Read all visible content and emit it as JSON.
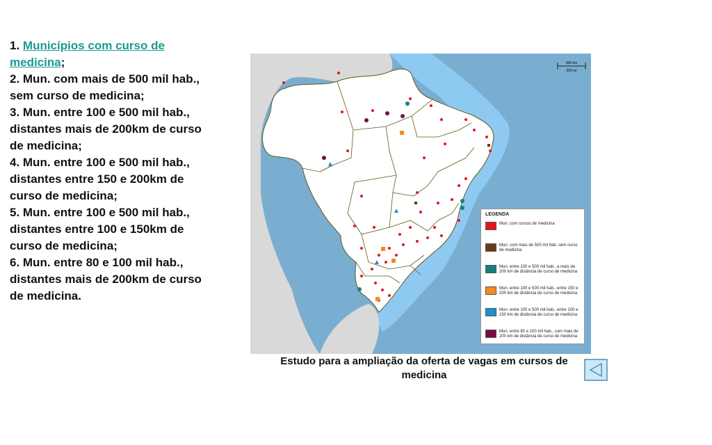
{
  "list": {
    "item1_prefix": "1. ",
    "item1_link": "Municípios com curso de medicina",
    "item1_suffix": ";",
    "item2": "2. Mun. com mais de 500 mil hab., sem curso de medicina;",
    "item3": "3. Mun. entre 100 e 500 mil hab., distantes mais de 200km de curso de medicina;",
    "item4": "4. Mun. entre 100 e 500 mil hab., distantes entre 150 e 200km de curso de medicina;",
    "item5": "5. Mun. entre 100 e 500 mil hab., distantes entre 100 e 150km de curso de medicina;",
    "item6": "6. Mun. entre 80 e 100 mil hab., distantes mais de 200km de curso de medicina."
  },
  "map": {
    "legend_title": "LEGENDA",
    "legend": [
      {
        "label": "Mun. com cursos de medicina",
        "color": "#e8141b"
      },
      {
        "label": "Mun. com mais de 500 mil hab. sem curso de medicina",
        "color": "#6b3a12"
      },
      {
        "label": "Mun. entre 100 e 500 mil hab., a mais de 200 km de distância de curso de medicina",
        "color": "#137f7a"
      },
      {
        "label": "Mun. entre 100 e 500 mil hab., entre 150 e 200 km de distância de curso de medicina",
        "color": "#f58b1f"
      },
      {
        "label": "Mun. entre 100 e 500 mil hab., entre 100 e 150 km de distância de curso de medicina",
        "color": "#1d8fd1"
      },
      {
        "label": "Mun. entre 80 e 100 mil hab., com mais de 200 km de distância de curso de medicina",
        "color": "#7a0b45"
      }
    ],
    "scale_km": "900 km",
    "scale_mi": "200 mi",
    "ocean_color": "#7aaed0",
    "coast_color": "#8ec9f2",
    "land_color": "#ffffff",
    "border_color": "#5a5a1a"
  },
  "caption": "Estudo para a ampliação da oferta de vagas em cursos de medicina",
  "nav": {
    "back_icon": "back-triangle-icon"
  }
}
